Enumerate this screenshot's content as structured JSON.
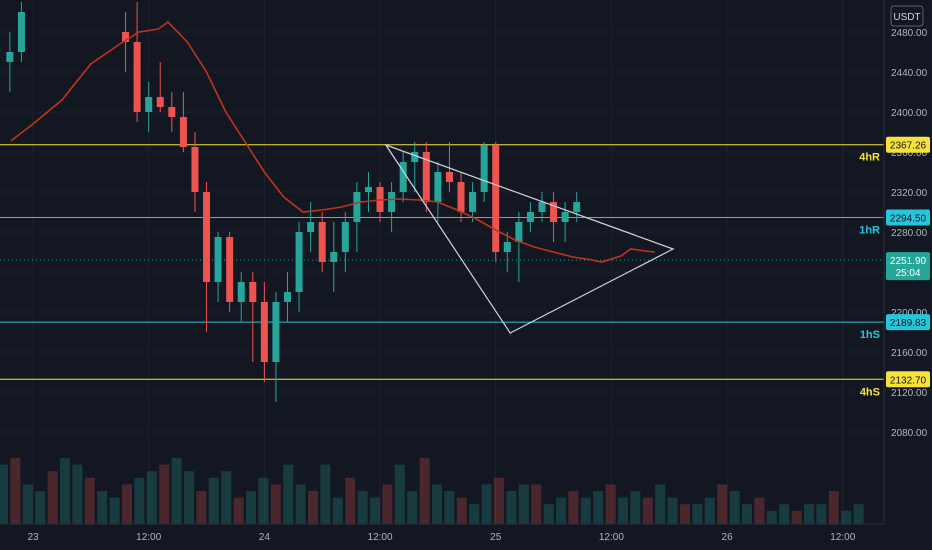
{
  "chart_data": {
    "type": "candlestick",
    "currency_label": "USDT",
    "y_ticks": [
      "2480.00",
      "2440.00",
      "2400.00",
      "2360.00",
      "2320.00",
      "2280.00",
      "2240.00",
      "2200.00",
      "2160.00",
      "2120.00",
      "2080.00"
    ],
    "y_tick_values": [
      2480,
      2440,
      2400,
      2360,
      2320,
      2280,
      2240,
      2200,
      2160,
      2120,
      2080
    ],
    "x_ticks": [
      "23",
      "12:00",
      "24",
      "12:00",
      "25",
      "12:00",
      "26",
      "12:00"
    ],
    "x_tick_hours": [
      0,
      12,
      24,
      36,
      48,
      60,
      72,
      84
    ],
    "levels": [
      {
        "label": "4hR",
        "value_text": "2367.26",
        "value": 2367.26,
        "color": "#f5e23b",
        "text_color": "#131722"
      },
      {
        "label": "1hR",
        "value_text": "2294.50",
        "value": 2294.5,
        "color": "#26c6da",
        "text_color": "#131722"
      },
      {
        "label": "1hS",
        "value_text": "2189.83",
        "value": 2189.83,
        "color": "#26c6da",
        "text_color": "#131722"
      },
      {
        "label": "4hS",
        "value_text": "2132.70",
        "value": 2132.7,
        "color": "#f5e23b",
        "text_color": "#131722"
      }
    ],
    "current_price": {
      "value_text": "2251.90",
      "value": 2251.9,
      "countdown": "25:04",
      "color": "#26a69a"
    },
    "moving_average": {
      "color": "#c0341d",
      "points": [
        [
          -2.3,
          2371
        ],
        [
          0,
          2388
        ],
        [
          3,
          2412
        ],
        [
          6,
          2448
        ],
        [
          9,
          2468
        ],
        [
          11,
          2480
        ],
        [
          13,
          2483
        ],
        [
          14,
          2490
        ],
        [
          16,
          2470
        ],
        [
          18,
          2440
        ],
        [
          20,
          2400
        ],
        [
          22,
          2370
        ],
        [
          24,
          2340
        ],
        [
          26,
          2315
        ],
        [
          28,
          2300
        ],
        [
          30,
          2302
        ],
        [
          32,
          2305
        ],
        [
          34,
          2310
        ],
        [
          36,
          2312
        ],
        [
          38,
          2313
        ],
        [
          40,
          2312
        ],
        [
          42,
          2310
        ],
        [
          44,
          2302
        ],
        [
          46,
          2293
        ],
        [
          48,
          2282
        ],
        [
          50,
          2272
        ],
        [
          52,
          2265
        ],
        [
          54,
          2260
        ],
        [
          56,
          2255
        ],
        [
          58,
          2252
        ],
        [
          59,
          2250
        ],
        [
          61,
          2256
        ],
        [
          62,
          2263
        ],
        [
          63.5,
          2261
        ],
        [
          64.5,
          2260
        ]
      ]
    },
    "triangle": {
      "color": "#d1d4dc",
      "points": [
        [
          36.6,
          2367
        ],
        [
          66.4,
          2263
        ],
        [
          49.5,
          2179
        ]
      ]
    },
    "candles": [
      {
        "t": -2.4,
        "o": 2450,
        "h": 2480,
        "l": 2420,
        "c": 2460
      },
      {
        "t": -1.2,
        "o": 2460,
        "h": 2510,
        "l": 2450,
        "c": 2500
      },
      {
        "t": 9.6,
        "o": 2480,
        "h": 2500,
        "l": 2440,
        "c": 2470
      },
      {
        "t": 10.8,
        "o": 2470,
        "h": 2510,
        "l": 2390,
        "c": 2400
      },
      {
        "t": 12.0,
        "o": 2400,
        "h": 2430,
        "l": 2380,
        "c": 2415
      },
      {
        "t": 13.2,
        "o": 2415,
        "h": 2450,
        "l": 2400,
        "c": 2405
      },
      {
        "t": 14.4,
        "o": 2405,
        "h": 2420,
        "l": 2380,
        "c": 2395
      },
      {
        "t": 15.6,
        "o": 2395,
        "h": 2420,
        "l": 2360,
        "c": 2365
      },
      {
        "t": 16.8,
        "o": 2365,
        "h": 2380,
        "l": 2300,
        "c": 2320
      },
      {
        "t": 18.0,
        "o": 2320,
        "h": 2330,
        "l": 2180,
        "c": 2230
      },
      {
        "t": 19.2,
        "o": 2230,
        "h": 2280,
        "l": 2210,
        "c": 2275
      },
      {
        "t": 20.4,
        "o": 2275,
        "h": 2280,
        "l": 2200,
        "c": 2210
      },
      {
        "t": 21.6,
        "o": 2210,
        "h": 2240,
        "l": 2190,
        "c": 2230
      },
      {
        "t": 22.8,
        "o": 2230,
        "h": 2240,
        "l": 2150,
        "c": 2210
      },
      {
        "t": 24.0,
        "o": 2210,
        "h": 2230,
        "l": 2130,
        "c": 2150
      },
      {
        "t": 25.2,
        "o": 2150,
        "h": 2220,
        "l": 2110,
        "c": 2210
      },
      {
        "t": 26.4,
        "o": 2210,
        "h": 2240,
        "l": 2190,
        "c": 2220
      },
      {
        "t": 27.6,
        "o": 2220,
        "h": 2290,
        "l": 2200,
        "c": 2280
      },
      {
        "t": 28.8,
        "o": 2280,
        "h": 2310,
        "l": 2260,
        "c": 2290
      },
      {
        "t": 30.0,
        "o": 2290,
        "h": 2300,
        "l": 2240,
        "c": 2250
      },
      {
        "t": 31.2,
        "o": 2250,
        "h": 2290,
        "l": 2220,
        "c": 2260
      },
      {
        "t": 32.4,
        "o": 2260,
        "h": 2300,
        "l": 2240,
        "c": 2290
      },
      {
        "t": 33.6,
        "o": 2290,
        "h": 2330,
        "l": 2260,
        "c": 2320
      },
      {
        "t": 34.8,
        "o": 2320,
        "h": 2340,
        "l": 2300,
        "c": 2325
      },
      {
        "t": 36.0,
        "o": 2325,
        "h": 2330,
        "l": 2290,
        "c": 2300
      },
      {
        "t": 37.2,
        "o": 2300,
        "h": 2330,
        "l": 2280,
        "c": 2320
      },
      {
        "t": 38.4,
        "o": 2320,
        "h": 2360,
        "l": 2310,
        "c": 2350
      },
      {
        "t": 39.6,
        "o": 2350,
        "h": 2370,
        "l": 2320,
        "c": 2360
      },
      {
        "t": 40.8,
        "o": 2360,
        "h": 2370,
        "l": 2300,
        "c": 2310
      },
      {
        "t": 42.0,
        "o": 2310,
        "h": 2350,
        "l": 2290,
        "c": 2340
      },
      {
        "t": 43.2,
        "o": 2340,
        "h": 2370,
        "l": 2320,
        "c": 2330
      },
      {
        "t": 44.4,
        "o": 2330,
        "h": 2340,
        "l": 2290,
        "c": 2300
      },
      {
        "t": 45.6,
        "o": 2300,
        "h": 2330,
        "l": 2290,
        "c": 2320
      },
      {
        "t": 46.8,
        "o": 2320,
        "h": 2370,
        "l": 2310,
        "c": 2367
      },
      {
        "t": 48.0,
        "o": 2367,
        "h": 2370,
        "l": 2250,
        "c": 2260
      },
      {
        "t": 49.2,
        "o": 2260,
        "h": 2280,
        "l": 2240,
        "c": 2270
      },
      {
        "t": 50.4,
        "o": 2270,
        "h": 2300,
        "l": 2230,
        "c": 2290
      },
      {
        "t": 51.6,
        "o": 2290,
        "h": 2310,
        "l": 2280,
        "c": 2300
      },
      {
        "t": 52.8,
        "o": 2300,
        "h": 2320,
        "l": 2290,
        "c": 2310
      },
      {
        "t": 54.0,
        "o": 2310,
        "h": 2320,
        "l": 2270,
        "c": 2290
      },
      {
        "t": 55.2,
        "o": 2290,
        "h": 2310,
        "l": 2270,
        "c": 2300
      },
      {
        "t": 56.4,
        "o": 2300,
        "h": 2320,
        "l": 2290,
        "c": 2310
      }
    ],
    "volumes": [
      9,
      10,
      6,
      5,
      8,
      10,
      9,
      7,
      5,
      4,
      6,
      7,
      8,
      9,
      10,
      8,
      5,
      7,
      8,
      4,
      5,
      7,
      6,
      9,
      6,
      5,
      9,
      4,
      7,
      5,
      4,
      6,
      9,
      5,
      10,
      6,
      5,
      4,
      3,
      6,
      7,
      5,
      6,
      6,
      3,
      4,
      5,
      4,
      5,
      6,
      4,
      5,
      4,
      6,
      4,
      3,
      3,
      4,
      6,
      5,
      3,
      4,
      2,
      3,
      2,
      3,
      3,
      5,
      2,
      3,
      2
    ]
  }
}
